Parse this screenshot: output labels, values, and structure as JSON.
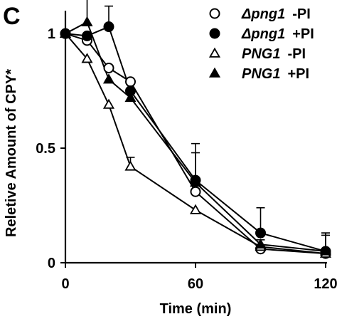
{
  "panel_label": "C",
  "chart_data": {
    "type": "line",
    "xlabel": "Time (min)",
    "ylabel": "Reletive Amount of CPY*",
    "xlim": [
      0,
      120
    ],
    "ylim": [
      0,
      1.1
    ],
    "x_ticks": [
      0,
      60,
      120
    ],
    "y_ticks": [
      0,
      0.5,
      1
    ],
    "x_tick_labels": [
      "0",
      "60",
      "120"
    ],
    "y_tick_labels": [
      "0",
      "0.5",
      "1"
    ],
    "grid": false,
    "legend_position": "top-right",
    "series": [
      {
        "name": "Δpng1 -PI",
        "name_italic": "Δpng1",
        "name_suffix": "-PI",
        "marker": "circle-open",
        "x": [
          0,
          10,
          20,
          30,
          60,
          90,
          120
        ],
        "y": [
          1.0,
          0.97,
          0.85,
          0.79,
          0.31,
          0.06,
          0.04
        ],
        "errors": [
          0,
          0,
          0,
          0,
          0,
          0,
          0.08
        ]
      },
      {
        "name": "Δpng1 +PI",
        "name_italic": "Δpng1",
        "name_suffix": "+PI",
        "marker": "circle-filled",
        "x": [
          0,
          10,
          20,
          30,
          60,
          90,
          120
        ],
        "y": [
          1.0,
          0.99,
          1.03,
          0.75,
          0.36,
          0.13,
          0.05
        ],
        "errors": [
          0,
          0,
          0.09,
          0,
          0.16,
          0.11,
          0.08
        ]
      },
      {
        "name": "PNG1 -PI",
        "name_italic": "PNG1",
        "name_suffix": "-PI",
        "marker": "triangle-open",
        "x": [
          0,
          10,
          20,
          30,
          60,
          90,
          120
        ],
        "y": [
          1.0,
          0.89,
          0.69,
          0.42,
          0.23,
          0.07,
          0.04
        ],
        "errors": [
          0,
          0,
          0,
          0.04,
          0,
          0,
          0
        ]
      },
      {
        "name": "PNG1 +PI",
        "name_italic": "PNG1",
        "name_suffix": "+PI",
        "marker": "triangle-filled",
        "x": [
          0,
          10,
          20,
          30,
          60,
          90,
          120
        ],
        "y": [
          1.0,
          1.05,
          0.8,
          0.72,
          0.35,
          0.08,
          0.05
        ],
        "errors": [
          0,
          0.1,
          0,
          0,
          0.13,
          0.02,
          0.08
        ]
      }
    ]
  }
}
